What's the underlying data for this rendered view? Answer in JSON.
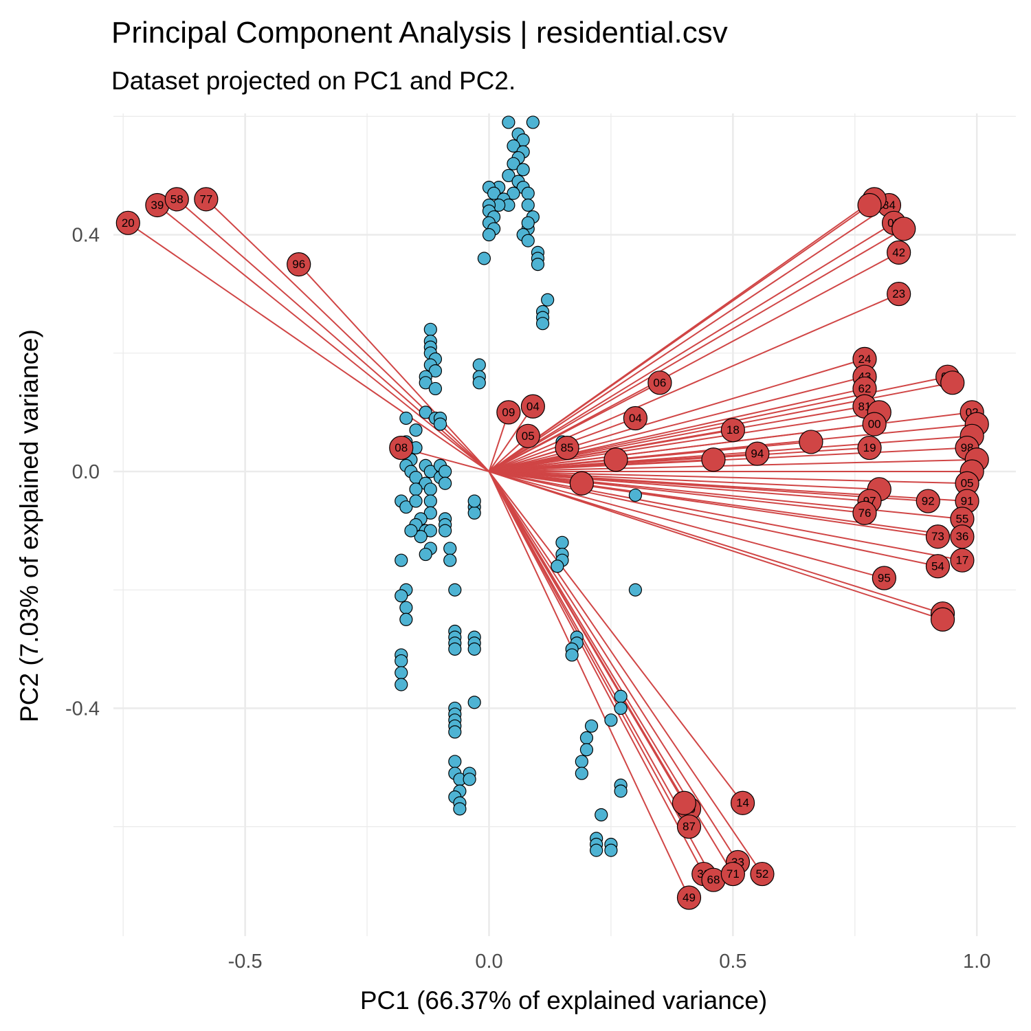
{
  "chart_data": {
    "type": "scatter",
    "title": "Principal Component Analysis | residential.csv",
    "subtitle": "Dataset projected on PC1 and PC2.",
    "xlabel": "PC1 (66.37% of explained variance)",
    "ylabel": "PC2 (7.03% of explained variance)",
    "xlim": [
      -0.77,
      1.08
    ],
    "ylim": [
      -0.785,
      0.605
    ],
    "x_ticks": [
      -0.5,
      0.0,
      0.5,
      1.0
    ],
    "x_tick_labels": [
      "-0.5",
      "0.0",
      "0.5",
      "1.0"
    ],
    "y_ticks": [
      -0.4,
      0.0,
      0.4
    ],
    "y_tick_labels": [
      "-0.4",
      "0.0",
      "0.4"
    ],
    "grid": true,
    "colors": {
      "observations": "#4eb3d3",
      "loadings": "#d04545",
      "grid": "#ebebeb"
    },
    "observations": [
      [
        0.04,
        0.59
      ],
      [
        0.09,
        0.59
      ],
      [
        0.06,
        0.57
      ],
      [
        0.07,
        0.56
      ],
      [
        0.05,
        0.55
      ],
      [
        0.07,
        0.54
      ],
      [
        0.06,
        0.53
      ],
      [
        0.05,
        0.52
      ],
      [
        0.07,
        0.51
      ],
      [
        0.04,
        0.5
      ],
      [
        0.06,
        0.49
      ],
      [
        0.07,
        0.48
      ],
      [
        0.05,
        0.47
      ],
      [
        0.02,
        0.48
      ],
      [
        0.0,
        0.48
      ],
      [
        0.01,
        0.47
      ],
      [
        0.03,
        0.46
      ],
      [
        0.04,
        0.45
      ],
      [
        0.08,
        0.47
      ],
      [
        0.08,
        0.45
      ],
      [
        0.02,
        0.45
      ],
      [
        -0.0,
        0.45
      ],
      [
        0.0,
        0.44
      ],
      [
        0.01,
        0.43
      ],
      [
        0.09,
        0.43
      ],
      [
        0.08,
        0.41
      ],
      [
        0.08,
        0.42
      ],
      [
        0.0,
        0.42
      ],
      [
        0.01,
        0.41
      ],
      [
        0.0,
        0.4
      ],
      [
        0.07,
        0.4
      ],
      [
        0.08,
        0.39
      ],
      [
        0.1,
        0.37
      ],
      [
        0.1,
        0.36
      ],
      [
        0.1,
        0.35
      ],
      [
        -0.01,
        0.36
      ],
      [
        0.12,
        0.29
      ],
      [
        0.11,
        0.27
      ],
      [
        0.11,
        0.26
      ],
      [
        0.11,
        0.25
      ],
      [
        -0.12,
        0.24
      ],
      [
        -0.12,
        0.22
      ],
      [
        -0.12,
        0.21
      ],
      [
        -0.12,
        0.2
      ],
      [
        -0.11,
        0.19
      ],
      [
        -0.12,
        0.18
      ],
      [
        -0.11,
        0.17
      ],
      [
        -0.13,
        0.16
      ],
      [
        -0.13,
        0.15
      ],
      [
        -0.11,
        0.14
      ],
      [
        -0.02,
        0.18
      ],
      [
        -0.02,
        0.16
      ],
      [
        -0.02,
        0.15
      ],
      [
        -0.13,
        0.1
      ],
      [
        -0.11,
        0.09
      ],
      [
        -0.1,
        0.09
      ],
      [
        -0.17,
        0.09
      ],
      [
        -0.1,
        0.08
      ],
      [
        -0.15,
        0.07
      ],
      [
        -0.17,
        0.05
      ],
      [
        -0.15,
        0.04
      ],
      [
        -0.16,
        0.02
      ],
      [
        -0.17,
        0.01
      ],
      [
        -0.16,
        0.0
      ],
      [
        -0.15,
        -0.01
      ],
      [
        -0.13,
        0.01
      ],
      [
        -0.12,
        0.0
      ],
      [
        -0.13,
        -0.02
      ],
      [
        -0.1,
        0.01
      ],
      [
        -0.1,
        -0.01
      ],
      [
        -0.09,
        0.0
      ],
      [
        -0.09,
        -0.02
      ],
      [
        -0.15,
        -0.03
      ],
      [
        -0.12,
        -0.03
      ],
      [
        -0.18,
        -0.05
      ],
      [
        -0.17,
        -0.06
      ],
      [
        -0.15,
        -0.05
      ],
      [
        -0.12,
        -0.05
      ],
      [
        -0.12,
        -0.07
      ],
      [
        -0.14,
        -0.08
      ],
      [
        -0.15,
        -0.09
      ],
      [
        -0.13,
        -0.1
      ],
      [
        -0.12,
        -0.1
      ],
      [
        -0.14,
        -0.11
      ],
      [
        -0.12,
        -0.13
      ],
      [
        -0.13,
        -0.14
      ],
      [
        -0.16,
        -0.1
      ],
      [
        -0.09,
        -0.08
      ],
      [
        -0.09,
        -0.09
      ],
      [
        -0.09,
        -0.1
      ],
      [
        -0.08,
        -0.13
      ],
      [
        -0.08,
        -0.15
      ],
      [
        -0.18,
        -0.15
      ],
      [
        -0.17,
        -0.2
      ],
      [
        -0.18,
        -0.21
      ],
      [
        -0.17,
        -0.23
      ],
      [
        -0.17,
        -0.25
      ],
      [
        -0.18,
        -0.31
      ],
      [
        -0.18,
        -0.32
      ],
      [
        -0.18,
        -0.34
      ],
      [
        -0.18,
        -0.36
      ],
      [
        -0.07,
        -0.2
      ],
      [
        -0.07,
        -0.27
      ],
      [
        -0.07,
        -0.28
      ],
      [
        -0.07,
        -0.29
      ],
      [
        -0.07,
        -0.3
      ],
      [
        -0.03,
        -0.28
      ],
      [
        -0.03,
        -0.29
      ],
      [
        -0.03,
        -0.3
      ],
      [
        -0.07,
        -0.4
      ],
      [
        -0.07,
        -0.41
      ],
      [
        -0.07,
        -0.42
      ],
      [
        -0.07,
        -0.43
      ],
      [
        -0.07,
        -0.44
      ],
      [
        -0.03,
        -0.39
      ],
      [
        -0.07,
        -0.49
      ],
      [
        -0.07,
        -0.51
      ],
      [
        -0.06,
        -0.52
      ],
      [
        -0.04,
        -0.51
      ],
      [
        -0.04,
        -0.52
      ],
      [
        -0.06,
        -0.54
      ],
      [
        -0.07,
        -0.55
      ],
      [
        -0.06,
        -0.56
      ],
      [
        -0.06,
        -0.57
      ],
      [
        -0.03,
        -0.06
      ],
      [
        -0.03,
        -0.07
      ],
      [
        -0.03,
        -0.05
      ],
      [
        0.15,
        -0.12
      ],
      [
        0.15,
        -0.14
      ],
      [
        0.15,
        -0.15
      ],
      [
        0.14,
        -0.16
      ],
      [
        0.18,
        -0.28
      ],
      [
        0.18,
        -0.29
      ],
      [
        0.17,
        -0.3
      ],
      [
        0.17,
        -0.31
      ],
      [
        0.21,
        -0.43
      ],
      [
        0.2,
        -0.45
      ],
      [
        0.2,
        -0.47
      ],
      [
        0.19,
        -0.49
      ],
      [
        0.19,
        -0.51
      ],
      [
        0.27,
        -0.38
      ],
      [
        0.27,
        -0.4
      ],
      [
        0.25,
        -0.42
      ],
      [
        0.27,
        -0.53
      ],
      [
        0.27,
        -0.54
      ],
      [
        0.23,
        -0.58
      ],
      [
        0.22,
        -0.62
      ],
      [
        0.22,
        -0.63
      ],
      [
        0.22,
        -0.64
      ],
      [
        0.25,
        -0.63
      ],
      [
        0.25,
        -0.64
      ],
      [
        0.3,
        -0.2
      ],
      [
        0.3,
        -0.04
      ],
      [
        0.15,
        0.05
      ]
    ],
    "loadings": [
      {
        "label": "20",
        "x": -0.74,
        "y": 0.42
      },
      {
        "label": "39",
        "x": -0.68,
        "y": 0.45
      },
      {
        "label": "58",
        "x": -0.64,
        "y": 0.46
      },
      {
        "label": "77",
        "x": -0.58,
        "y": 0.46
      },
      {
        "label": "96",
        "x": -0.39,
        "y": 0.35
      },
      {
        "label": "08",
        "x": -0.18,
        "y": 0.04
      },
      {
        "label": "09",
        "x": 0.04,
        "y": 0.1
      },
      {
        "label": "04",
        "x": 0.09,
        "y": 0.11
      },
      {
        "label": "05",
        "x": 0.08,
        "y": 0.06
      },
      {
        "label": "85",
        "x": 0.16,
        "y": 0.04
      },
      {
        "label": "06",
        "x": 0.35,
        "y": 0.15
      },
      {
        "label": "04",
        "x": 0.3,
        "y": 0.09
      },
      {
        "label": "",
        "x": 0.26,
        "y": 0.02
      },
      {
        "label": "",
        "x": 0.19,
        "y": -0.02
      },
      {
        "label": "18",
        "x": 0.5,
        "y": 0.07
      },
      {
        "label": "94",
        "x": 0.55,
        "y": 0.03
      },
      {
        "label": "",
        "x": 0.46,
        "y": 0.02
      },
      {
        "label": "",
        "x": 0.66,
        "y": 0.05
      },
      {
        "label": "84",
        "x": 0.82,
        "y": 0.45
      },
      {
        "label": "",
        "x": 0.79,
        "y": 0.46
      },
      {
        "label": "",
        "x": 0.78,
        "y": 0.45
      },
      {
        "label": "03",
        "x": 0.83,
        "y": 0.42
      },
      {
        "label": "",
        "x": 0.85,
        "y": 0.41
      },
      {
        "label": "42",
        "x": 0.84,
        "y": 0.37
      },
      {
        "label": "23",
        "x": 0.84,
        "y": 0.3
      },
      {
        "label": "24",
        "x": 0.77,
        "y": 0.19
      },
      {
        "label": "43",
        "x": 0.77,
        "y": 0.16
      },
      {
        "label": "62",
        "x": 0.77,
        "y": 0.14
      },
      {
        "label": "81",
        "x": 0.77,
        "y": 0.11
      },
      {
        "label": "",
        "x": 0.8,
        "y": 0.1
      },
      {
        "label": "00",
        "x": 0.79,
        "y": 0.08
      },
      {
        "label": "19",
        "x": 0.78,
        "y": 0.04
      },
      {
        "label": "02",
        "x": 0.94,
        "y": 0.16
      },
      {
        "label": "",
        "x": 0.95,
        "y": 0.15
      },
      {
        "label": "02",
        "x": 0.99,
        "y": 0.1
      },
      {
        "label": "",
        "x": 1.0,
        "y": 0.08
      },
      {
        "label": "",
        "x": 0.99,
        "y": 0.06
      },
      {
        "label": "98",
        "x": 0.98,
        "y": 0.04
      },
      {
        "label": "",
        "x": 1.0,
        "y": 0.02
      },
      {
        "label": "",
        "x": 0.99,
        "y": 0.0
      },
      {
        "label": "05",
        "x": 0.98,
        "y": -0.02
      },
      {
        "label": "91",
        "x": 0.98,
        "y": -0.05
      },
      {
        "label": "",
        "x": 0.8,
        "y": -0.03
      },
      {
        "label": "97",
        "x": 0.78,
        "y": -0.05
      },
      {
        "label": "76",
        "x": 0.77,
        "y": -0.07
      },
      {
        "label": "92",
        "x": 0.9,
        "y": -0.05
      },
      {
        "label": "55",
        "x": 0.97,
        "y": -0.08
      },
      {
        "label": "73",
        "x": 0.92,
        "y": -0.11
      },
      {
        "label": "36",
        "x": 0.97,
        "y": -0.11
      },
      {
        "label": "17",
        "x": 0.97,
        "y": -0.15
      },
      {
        "label": "54",
        "x": 0.92,
        "y": -0.16
      },
      {
        "label": "95",
        "x": 0.81,
        "y": -0.18
      },
      {
        "label": "35",
        "x": 0.93,
        "y": -0.24
      },
      {
        "label": "",
        "x": 0.93,
        "y": -0.25
      },
      {
        "label": "14",
        "x": 0.52,
        "y": -0.56
      },
      {
        "label": "90",
        "x": 0.41,
        "y": -0.57
      },
      {
        "label": "",
        "x": 0.4,
        "y": -0.56
      },
      {
        "label": "87",
        "x": 0.41,
        "y": -0.6
      },
      {
        "label": "32",
        "x": 0.44,
        "y": -0.68
      },
      {
        "label": "68",
        "x": 0.46,
        "y": -0.69
      },
      {
        "label": "33",
        "x": 0.51,
        "y": -0.66
      },
      {
        "label": "71",
        "x": 0.5,
        "y": -0.68
      },
      {
        "label": "52",
        "x": 0.56,
        "y": -0.68
      },
      {
        "label": "49",
        "x": 0.41,
        "y": -0.72
      }
    ]
  }
}
